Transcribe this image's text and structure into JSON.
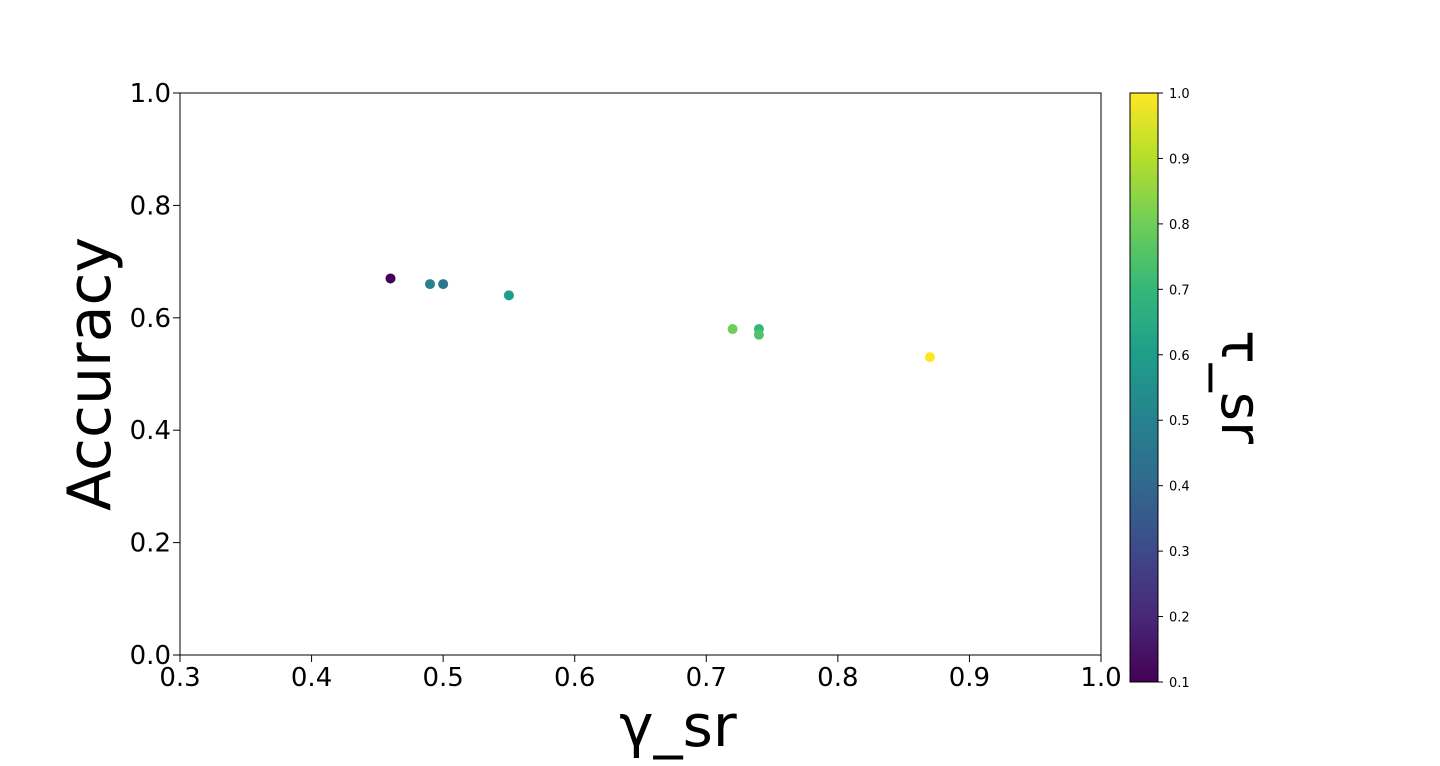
{
  "chart_data": {
    "type": "scatter",
    "xlabel": "γ_sr",
    "ylabel": "Accuracy",
    "colorbar_label": "τ_sr",
    "xlim": [
      0.3,
      1.0
    ],
    "ylim": [
      0.0,
      1.0
    ],
    "clim": [
      0.1,
      1.0
    ],
    "colormap": "viridis",
    "grid": false,
    "x_ticks": [
      "0.3",
      "0.4",
      "0.5",
      "0.6",
      "0.7",
      "0.8",
      "0.9",
      "1.0"
    ],
    "y_ticks": [
      "0.0",
      "0.2",
      "0.4",
      "0.6",
      "0.8",
      "1.0"
    ],
    "colorbar_ticks": [
      "0.1",
      "0.2",
      "0.3",
      "0.4",
      "0.5",
      "0.6",
      "0.7",
      "0.8",
      "0.9",
      "1.0"
    ],
    "points": [
      {
        "x": 0.46,
        "y": 0.67,
        "c": 0.1
      },
      {
        "x": 0.49,
        "y": 0.66,
        "c": 0.5
      },
      {
        "x": 0.5,
        "y": 0.66,
        "c": 0.45
      },
      {
        "x": 0.55,
        "y": 0.64,
        "c": 0.6
      },
      {
        "x": 0.72,
        "y": 0.58,
        "c": 0.8
      },
      {
        "x": 0.74,
        "y": 0.58,
        "c": 0.7
      },
      {
        "x": 0.74,
        "y": 0.57,
        "c": 0.75
      },
      {
        "x": 0.87,
        "y": 0.53,
        "c": 1.0
      }
    ]
  }
}
